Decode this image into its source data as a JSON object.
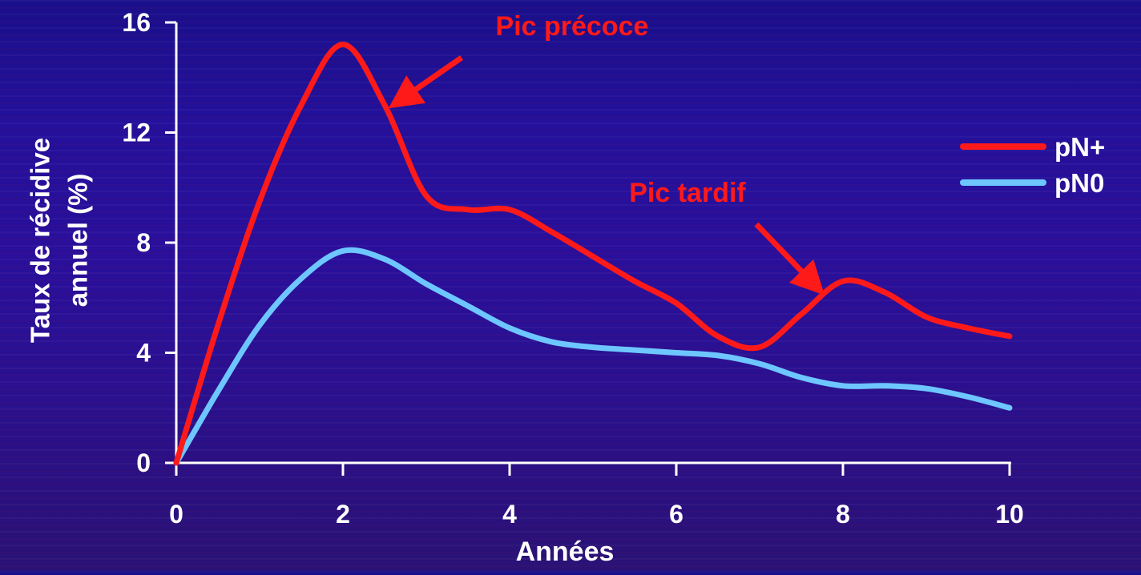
{
  "chart_data": {
    "type": "line",
    "xlabel": "Années",
    "ylabel_lines": [
      "Taux de récidive",
      "annuel (%)"
    ],
    "xlim": [
      0,
      10
    ],
    "ylim": [
      0,
      16
    ],
    "xticks": [
      0,
      2,
      4,
      6,
      8,
      10
    ],
    "yticks": [
      0,
      4,
      8,
      12,
      16
    ],
    "grid": false,
    "legend_position": "right",
    "series": [
      {
        "name": "pN+",
        "color": "#ff1a1a",
        "x": [
          0,
          0.5,
          1,
          1.5,
          2,
          2.5,
          3,
          3.5,
          4,
          4.5,
          5,
          5.5,
          6,
          6.5,
          7,
          7.5,
          8,
          8.5,
          9,
          9.5,
          10
        ],
        "y": [
          0,
          5.0,
          9.5,
          13.0,
          15.2,
          13.0,
          9.7,
          9.2,
          9.2,
          8.4,
          7.5,
          6.6,
          5.8,
          4.6,
          4.2,
          5.4,
          6.6,
          6.2,
          5.3,
          4.9,
          4.6
        ]
      },
      {
        "name": "pN0",
        "color": "#6ec6ff",
        "x": [
          0,
          0.5,
          1,
          1.5,
          2,
          2.5,
          3,
          3.5,
          4,
          4.5,
          5,
          5.5,
          6,
          6.5,
          7,
          7.5,
          8,
          8.5,
          9,
          9.5,
          10
        ],
        "y": [
          0,
          2.6,
          5.0,
          6.7,
          7.7,
          7.4,
          6.5,
          5.7,
          4.9,
          4.4,
          4.2,
          4.1,
          4.0,
          3.9,
          3.6,
          3.1,
          2.8,
          2.8,
          2.7,
          2.4,
          2.0
        ]
      }
    ],
    "annotations": [
      {
        "text": "Pic précoce",
        "color": "#ff1a1a",
        "target_x": 2.7,
        "target_y": 13.2
      },
      {
        "text": "Pic tardif",
        "color": "#ff1a1a",
        "target_x": 7.65,
        "target_y": 6.5
      }
    ]
  }
}
